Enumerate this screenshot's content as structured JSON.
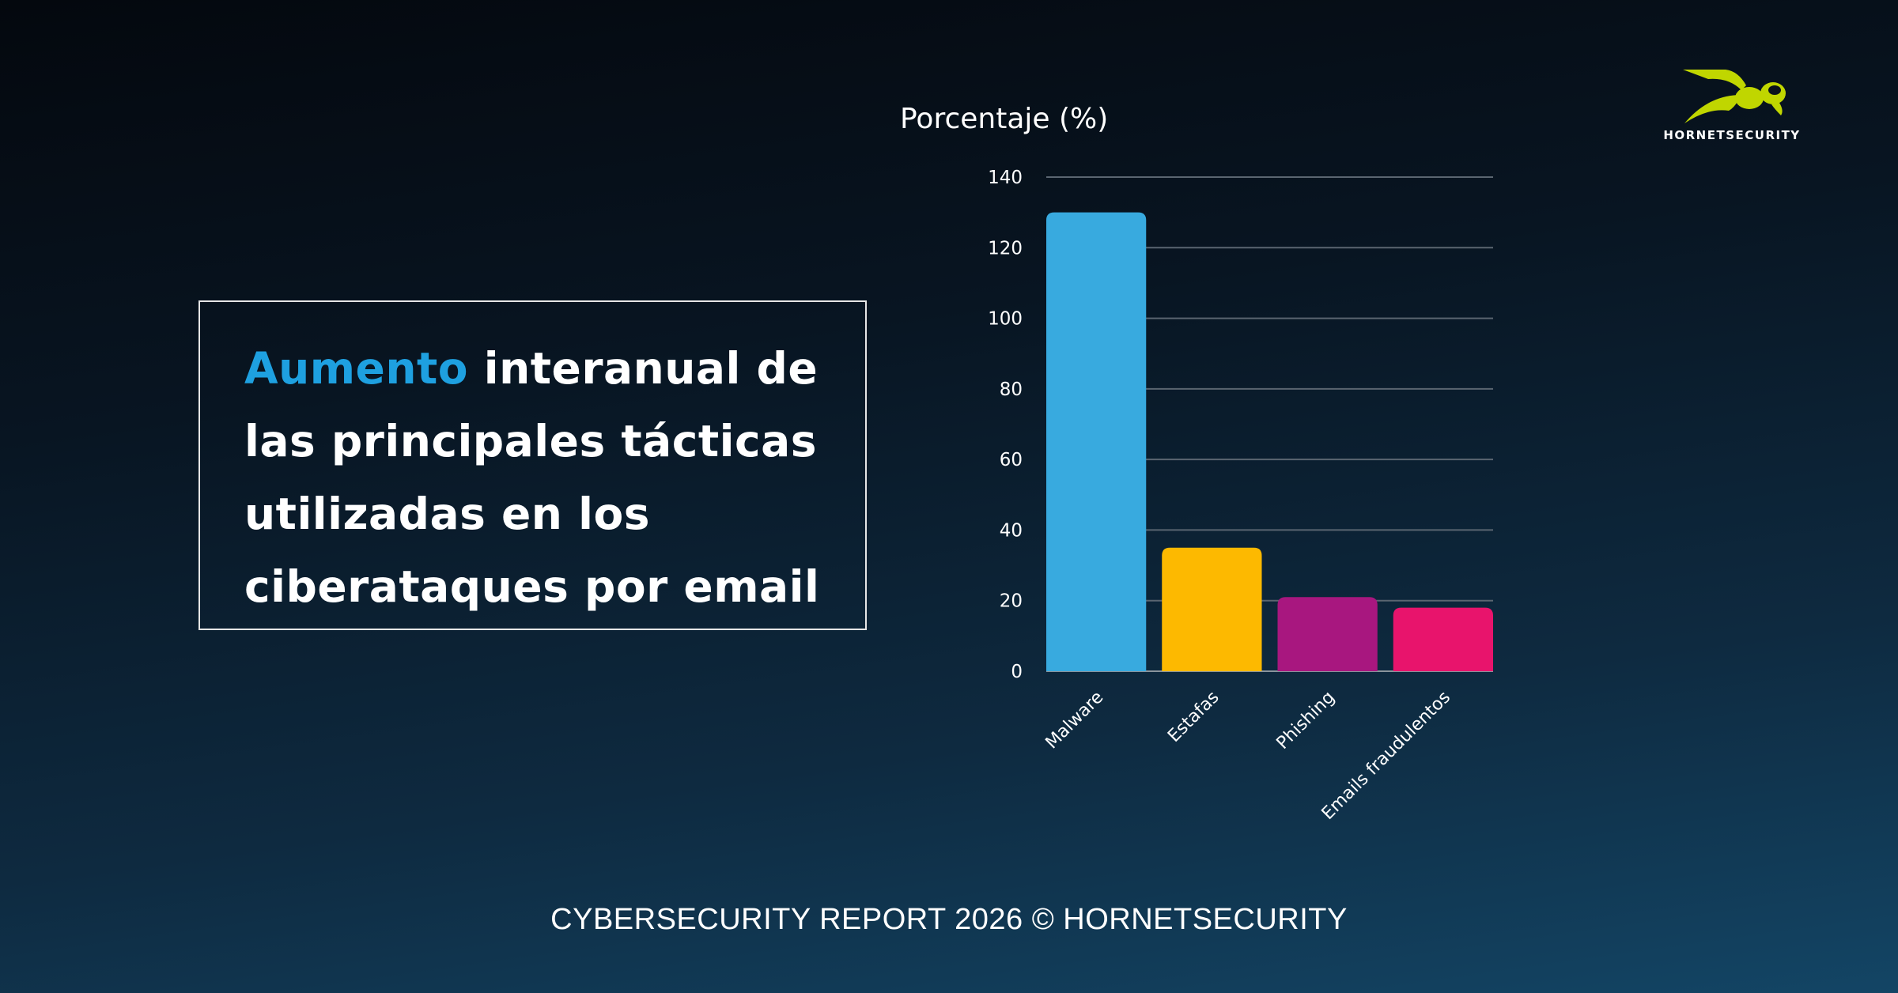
{
  "headline": {
    "accent": "Aumento",
    "rest": " interanual de las principales tácticas utilizadas en los ciberataques por email",
    "accent_color": "#1ea0e0"
  },
  "logo": {
    "text": "HORNETSECURITY",
    "icon": "hornet-icon",
    "color": "#c0d600"
  },
  "footer": "CYBERSECURITY REPORT 2026 © HORNETSECURITY",
  "chart_data": {
    "type": "bar",
    "title": "",
    "ylabel": "Porcentaje (%)",
    "xlabel": "",
    "categories": [
      "Malware",
      "Estafas",
      "Phishing",
      "Emails fraudulentos"
    ],
    "values": [
      130,
      35,
      21,
      18
    ],
    "colors": [
      "#38aadf",
      "#fdb900",
      "#a8177f",
      "#e8146c"
    ],
    "ylim": [
      0,
      140
    ],
    "yticks": [
      0,
      20,
      40,
      60,
      80,
      100,
      120,
      140
    ],
    "grid": true
  }
}
